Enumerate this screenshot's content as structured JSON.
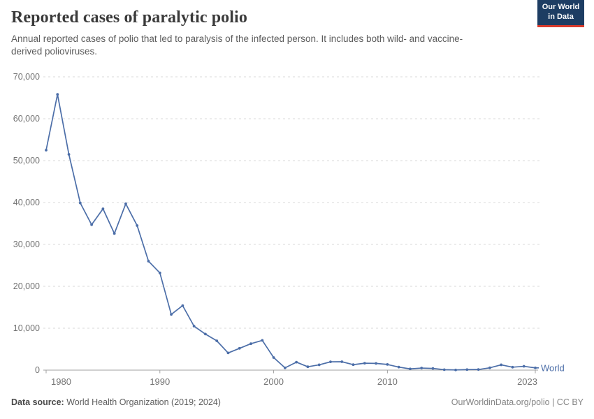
{
  "header": {
    "title": "Reported cases of paralytic polio",
    "subtitle": "Annual reported cases of polio that led to paralysis of the infected person. It includes both wild- and vaccine-derived polioviruses.",
    "logo": {
      "line1": "Our World",
      "line2": "in Data"
    }
  },
  "chart_data": {
    "type": "line",
    "title": "Reported cases of paralytic polio",
    "xlabel": "",
    "ylabel": "",
    "xlim": [
      1980,
      2023
    ],
    "ylim": [
      0,
      70000
    ],
    "grid": "horizontal dashed",
    "legend_position": "end-of-line",
    "x_ticks": [
      1980,
      1990,
      2000,
      2010,
      2023
    ],
    "y_ticks": [
      0,
      10000,
      20000,
      30000,
      40000,
      50000,
      60000,
      70000
    ],
    "series": [
      {
        "name": "World",
        "color": "#4C6EA8",
        "x": [
          1980,
          1981,
          1982,
          1983,
          1984,
          1985,
          1986,
          1987,
          1988,
          1989,
          1990,
          1991,
          1992,
          1993,
          1994,
          1995,
          1996,
          1997,
          1998,
          1999,
          2000,
          2001,
          2002,
          2003,
          2004,
          2005,
          2006,
          2007,
          2008,
          2009,
          2010,
          2011,
          2012,
          2013,
          2014,
          2015,
          2016,
          2017,
          2018,
          2019,
          2020,
          2021,
          2022,
          2023
        ],
        "values": [
          52500,
          65800,
          51500,
          39900,
          34700,
          38500,
          32600,
          39700,
          34500,
          26000,
          23200,
          13300,
          15400,
          10500,
          8600,
          7000,
          4100,
          5200,
          6300,
          7100,
          3000,
          540,
          1900,
          800,
          1260,
          1980,
          2000,
          1300,
          1650,
          1600,
          1350,
          720,
          290,
          490,
          400,
          110,
          40,
          120,
          140,
          550,
          1260,
          700,
          910,
          540
        ]
      }
    ],
    "colors": {
      "line": "#4C6EA8",
      "gridline": "#dadada",
      "axis": "#a0a0a0",
      "tick_text": "#737373"
    }
  },
  "footer": {
    "source_label": "Data source:",
    "source_value": " World Health Organization (2019; 2024)",
    "attribution": "OurWorldinData.org/polio | CC BY"
  },
  "brand": {
    "navy": "#1d3d63",
    "red": "#d93a2b"
  }
}
